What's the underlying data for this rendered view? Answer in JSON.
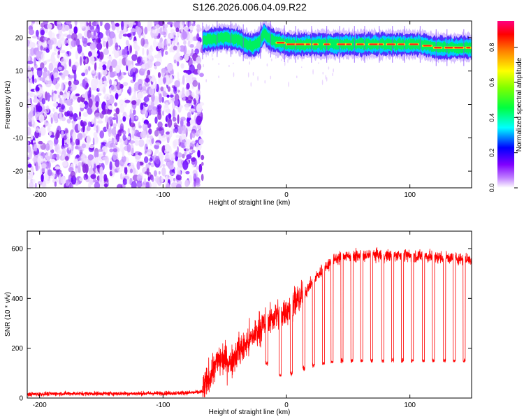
{
  "title": "S126.2026.006.04.09.R22",
  "chart_data": [
    {
      "type": "heatmap",
      "xlabel": "Height of straight line (km)",
      "ylabel": "Frequency (Hz)",
      "xlim": [
        -210,
        150
      ],
      "ylim": [
        -25,
        25
      ],
      "xticks": [
        -200,
        -100,
        0,
        100
      ],
      "xtick_labels": [
        "-200",
        "-100",
        "0",
        "100"
      ],
      "yticks": [
        -20,
        -10,
        0,
        10,
        20
      ],
      "ytick_labels": [
        "-20",
        "-10",
        "0",
        "10",
        "20"
      ],
      "noise_region_x": [
        -210,
        -68
      ],
      "signal_band": {
        "x_range": [
          -68,
          150
        ],
        "profile": [
          {
            "x": -68,
            "freq": 19.0
          },
          {
            "x": -60,
            "freq": 19.5
          },
          {
            "x": -50,
            "freq": 20.0
          },
          {
            "x": -40,
            "freq": 19.5
          },
          {
            "x": -35,
            "freq": 18.5
          },
          {
            "x": -28,
            "freq": 17.5
          },
          {
            "x": -22,
            "freq": 18.5
          },
          {
            "x": -18,
            "freq": 21.5
          },
          {
            "x": -15,
            "freq": 20.0
          },
          {
            "x": -10,
            "freq": 19.0
          },
          {
            "x": 0,
            "freq": 18.0
          },
          {
            "x": 20,
            "freq": 18.0
          },
          {
            "x": 50,
            "freq": 18.0
          },
          {
            "x": 80,
            "freq": 18.0
          },
          {
            "x": 110,
            "freq": 18.0
          },
          {
            "x": 120,
            "freq": 17.0
          },
          {
            "x": 150,
            "freq": 17.0
          }
        ]
      },
      "colorbar": {
        "label": "Normalized spectral amplitude",
        "range": [
          0.0,
          0.95
        ],
        "ticks": [
          0.0,
          0.2,
          0.4,
          0.6,
          0.8
        ],
        "tick_labels": [
          "0.0",
          "0.2",
          "0.4",
          "0.6",
          "0.8"
        ],
        "colormap": "rainbow",
        "colors": [
          "#a000ff",
          "#0000ff",
          "#00ffff",
          "#00ff00",
          "#ffff00",
          "#ff8000",
          "#ff0000",
          "#ff0080"
        ]
      }
    },
    {
      "type": "line",
      "xlabel": "Height of straight line (km)",
      "ylabel": "SNR (10 * v/v)",
      "xlim": [
        -210,
        150
      ],
      "ylim": [
        0,
        670
      ],
      "xticks": [
        -200,
        -100,
        0,
        100
      ],
      "xtick_labels": [
        "-200",
        "-100",
        "0",
        "100"
      ],
      "yticks": [
        0,
        200,
        400,
        600
      ],
      "ytick_labels": [
        "0",
        "200",
        "400",
        "600"
      ],
      "color": "#ff0000",
      "x": [
        -210,
        -180,
        -150,
        -120,
        -90,
        -75,
        -68,
        -60,
        -55,
        -50,
        -45,
        -40,
        -35,
        -30,
        -25,
        -20,
        -15,
        -10,
        -5,
        0,
        5,
        10,
        15,
        20,
        25,
        30,
        35,
        40,
        50,
        60,
        70,
        80,
        90,
        100,
        110,
        120,
        130,
        140,
        150
      ],
      "y": [
        15,
        18,
        18,
        18,
        20,
        22,
        25,
        110,
        150,
        160,
        140,
        190,
        200,
        230,
        260,
        290,
        300,
        330,
        340,
        355,
        370,
        400,
        420,
        460,
        490,
        520,
        540,
        560,
        570,
        570,
        575,
        570,
        575,
        570,
        570,
        565,
        565,
        560,
        555
      ],
      "dropouts": {
        "x": [
          -16,
          -5,
          4,
          14,
          22,
          30,
          37,
          45,
          53,
          61,
          69,
          78,
          86,
          94,
          102,
          111,
          119,
          128,
          136,
          144
        ],
        "y": [
          140,
          90,
          100,
          120,
          130,
          140,
          145,
          150,
          150,
          150,
          150,
          150,
          150,
          150,
          150,
          150,
          150,
          150,
          150,
          150
        ]
      }
    }
  ]
}
